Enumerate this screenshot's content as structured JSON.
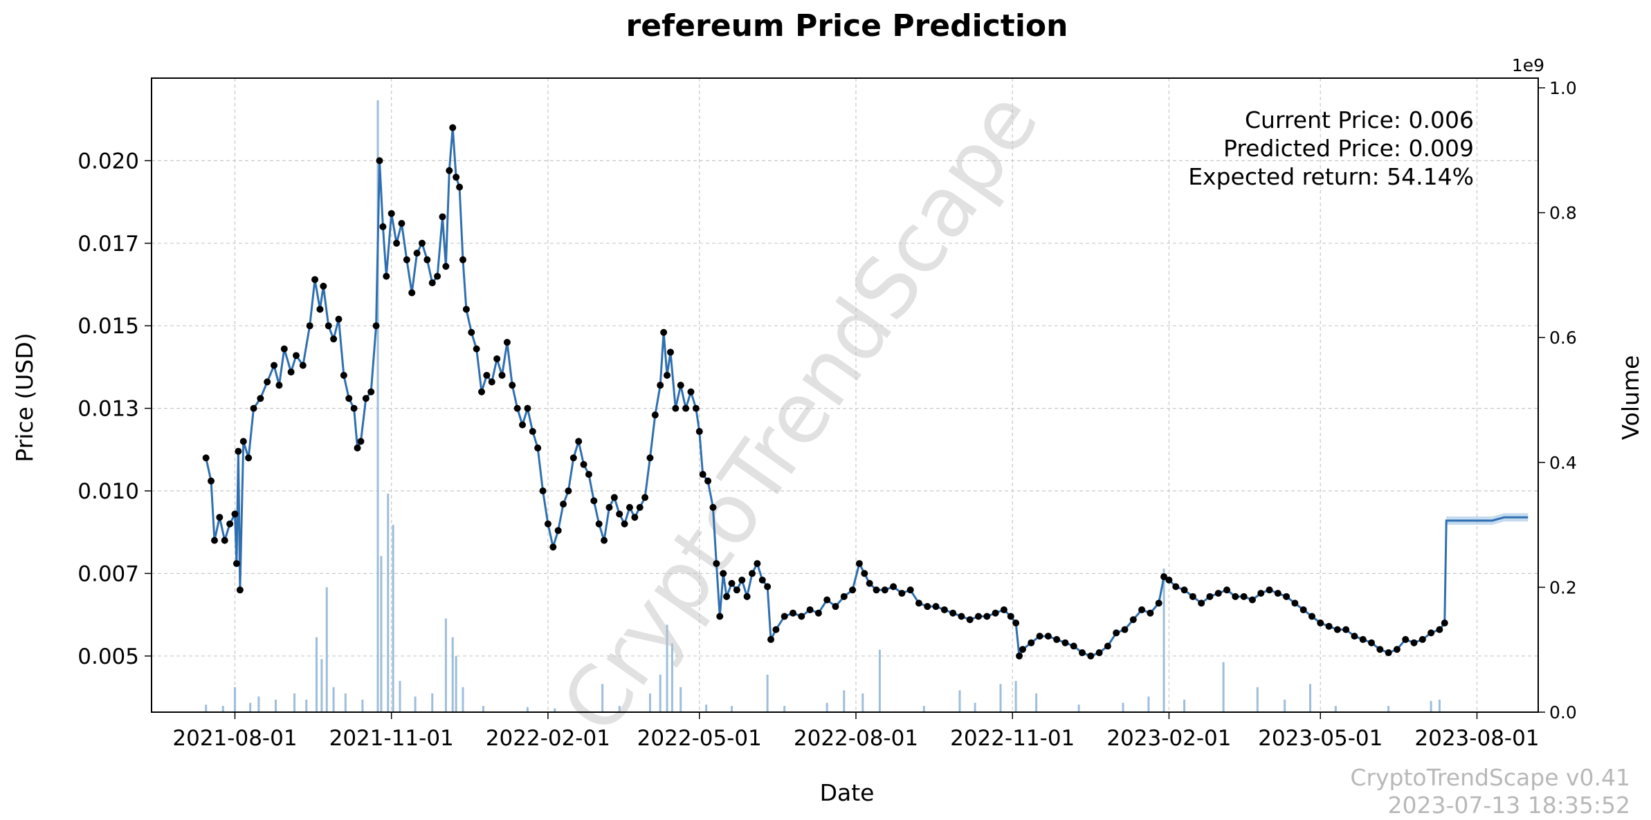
{
  "chart_data": {
    "type": "line",
    "title": "refereum Price Prediction",
    "xlabel": "Date",
    "ylabel": "Price (USD)",
    "y2label": "Volume",
    "y2_offset_label": "1e9",
    "x_range": [
      "2021-06-13",
      "2023-09-06"
    ],
    "ylim": [
      0.0033,
      0.0225
    ],
    "y2lim": [
      0,
      1.0
    ],
    "x_ticks": [
      "2021-08-01",
      "2021-11-01",
      "2022-02-01",
      "2022-05-01",
      "2022-08-01",
      "2022-11-01",
      "2023-02-01",
      "2023-05-01",
      "2023-08-01"
    ],
    "y_ticks": [
      {
        "value": 0.005,
        "label": "0.005"
      },
      {
        "value": 0.0075,
        "label": "0.007"
      },
      {
        "value": 0.01,
        "label": "0.010"
      },
      {
        "value": 0.0125,
        "label": "0.013"
      },
      {
        "value": 0.015,
        "label": "0.015"
      },
      {
        "value": 0.0175,
        "label": "0.017"
      },
      {
        "value": 0.02,
        "label": "0.020"
      }
    ],
    "y2_ticks": [
      {
        "value": 0.0,
        "label": "0.0"
      },
      {
        "value": 0.2,
        "label": "0.2"
      },
      {
        "value": 0.4,
        "label": "0.4"
      },
      {
        "value": 0.6,
        "label": "0.6"
      },
      {
        "value": 0.8,
        "label": "0.8"
      },
      {
        "value": 1.0,
        "label": "1.0"
      }
    ],
    "grid": true,
    "price_series": {
      "color": "#2f6fb0",
      "marker_color": "#000000",
      "points": [
        [
          "2021-07-15",
          0.011
        ],
        [
          "2021-07-18",
          0.0103
        ],
        [
          "2021-07-20",
          0.0085
        ],
        [
          "2021-07-23",
          0.0092
        ],
        [
          "2021-07-26",
          0.0085
        ],
        [
          "2021-07-29",
          0.009
        ],
        [
          "2021-08-01",
          0.0093
        ],
        [
          "2021-08-02",
          0.0078
        ],
        [
          "2021-08-03",
          0.0112
        ],
        [
          "2021-08-04",
          0.007
        ],
        [
          "2021-08-06",
          0.0115
        ],
        [
          "2021-08-09",
          0.011
        ],
        [
          "2021-08-12",
          0.0125
        ],
        [
          "2021-08-16",
          0.0128
        ],
        [
          "2021-08-20",
          0.0133
        ],
        [
          "2021-08-24",
          0.0138
        ],
        [
          "2021-08-27",
          0.0132
        ],
        [
          "2021-08-30",
          0.0143
        ],
        [
          "2021-09-03",
          0.0136
        ],
        [
          "2021-09-06",
          0.0141
        ],
        [
          "2021-09-10",
          0.0138
        ],
        [
          "2021-09-14",
          0.015
        ],
        [
          "2021-09-17",
          0.0164
        ],
        [
          "2021-09-20",
          0.0155
        ],
        [
          "2021-09-22",
          0.0162
        ],
        [
          "2021-09-25",
          0.015
        ],
        [
          "2021-09-28",
          0.0146
        ],
        [
          "2021-10-01",
          0.0152
        ],
        [
          "2021-10-04",
          0.0135
        ],
        [
          "2021-10-07",
          0.0128
        ],
        [
          "2021-10-10",
          0.0125
        ],
        [
          "2021-10-12",
          0.0113
        ],
        [
          "2021-10-14",
          0.0115
        ],
        [
          "2021-10-17",
          0.0128
        ],
        [
          "2021-10-20",
          0.013
        ],
        [
          "2021-10-23",
          0.015
        ],
        [
          "2021-10-25",
          0.02
        ],
        [
          "2021-10-27",
          0.018
        ],
        [
          "2021-10-29",
          0.0165
        ],
        [
          "2021-11-01",
          0.0184
        ],
        [
          "2021-11-04",
          0.0175
        ],
        [
          "2021-11-07",
          0.0181
        ],
        [
          "2021-11-10",
          0.017
        ],
        [
          "2021-11-13",
          0.016
        ],
        [
          "2021-11-16",
          0.0172
        ],
        [
          "2021-11-19",
          0.0175
        ],
        [
          "2021-11-22",
          0.017
        ],
        [
          "2021-11-25",
          0.0163
        ],
        [
          "2021-11-28",
          0.0165
        ],
        [
          "2021-12-01",
          0.0183
        ],
        [
          "2021-12-03",
          0.0168
        ],
        [
          "2021-12-05",
          0.0197
        ],
        [
          "2021-12-07",
          0.021
        ],
        [
          "2021-12-09",
          0.0195
        ],
        [
          "2021-12-11",
          0.0192
        ],
        [
          "2021-12-13",
          0.017
        ],
        [
          "2021-12-15",
          0.0155
        ],
        [
          "2021-12-18",
          0.0148
        ],
        [
          "2021-12-21",
          0.0143
        ],
        [
          "2021-12-24",
          0.013
        ],
        [
          "2021-12-27",
          0.0135
        ],
        [
          "2021-12-30",
          0.0133
        ],
        [
          "2022-01-02",
          0.014
        ],
        [
          "2022-01-05",
          0.0135
        ],
        [
          "2022-01-08",
          0.0145
        ],
        [
          "2022-01-11",
          0.0132
        ],
        [
          "2022-01-14",
          0.0125
        ],
        [
          "2022-01-17",
          0.012
        ],
        [
          "2022-01-20",
          0.0125
        ],
        [
          "2022-01-23",
          0.0118
        ],
        [
          "2022-01-26",
          0.0113
        ],
        [
          "2022-01-29",
          0.01
        ],
        [
          "2022-02-01",
          0.009
        ],
        [
          "2022-02-04",
          0.0083
        ],
        [
          "2022-02-07",
          0.0088
        ],
        [
          "2022-02-10",
          0.0096
        ],
        [
          "2022-02-13",
          0.01
        ],
        [
          "2022-02-16",
          0.011
        ],
        [
          "2022-02-19",
          0.0115
        ],
        [
          "2022-02-22",
          0.0108
        ],
        [
          "2022-02-25",
          0.0105
        ],
        [
          "2022-02-28",
          0.0097
        ],
        [
          "2022-03-03",
          0.009
        ],
        [
          "2022-03-06",
          0.0085
        ],
        [
          "2022-03-09",
          0.0095
        ],
        [
          "2022-03-12",
          0.0098
        ],
        [
          "2022-03-15",
          0.0093
        ],
        [
          "2022-03-18",
          0.009
        ],
        [
          "2022-03-21",
          0.0095
        ],
        [
          "2022-03-24",
          0.0092
        ],
        [
          "2022-03-27",
          0.0095
        ],
        [
          "2022-03-30",
          0.0098
        ],
        [
          "2022-04-02",
          0.011
        ],
        [
          "2022-04-05",
          0.0123
        ],
        [
          "2022-04-08",
          0.0132
        ],
        [
          "2022-04-10",
          0.0148
        ],
        [
          "2022-04-12",
          0.0135
        ],
        [
          "2022-04-14",
          0.0142
        ],
        [
          "2022-04-17",
          0.0125
        ],
        [
          "2022-04-20",
          0.0132
        ],
        [
          "2022-04-23",
          0.0125
        ],
        [
          "2022-04-26",
          0.013
        ],
        [
          "2022-04-29",
          0.0125
        ],
        [
          "2022-05-01",
          0.0118
        ],
        [
          "2022-05-03",
          0.0105
        ],
        [
          "2022-05-06",
          0.0103
        ],
        [
          "2022-05-09",
          0.0095
        ],
        [
          "2022-05-11",
          0.0078
        ],
        [
          "2022-05-13",
          0.0062
        ],
        [
          "2022-05-15",
          0.0075
        ],
        [
          "2022-05-17",
          0.0068
        ],
        [
          "2022-05-20",
          0.0072
        ],
        [
          "2022-05-23",
          0.007
        ],
        [
          "2022-05-26",
          0.0073
        ],
        [
          "2022-05-29",
          0.0068
        ],
        [
          "2022-06-01",
          0.0075
        ],
        [
          "2022-06-04",
          0.0078
        ],
        [
          "2022-06-07",
          0.0073
        ],
        [
          "2022-06-10",
          0.0071
        ],
        [
          "2022-06-12",
          0.0055
        ],
        [
          "2022-06-15",
          0.0058
        ],
        [
          "2022-06-20",
          0.0062
        ],
        [
          "2022-06-25",
          0.0063
        ],
        [
          "2022-06-30",
          0.0062
        ],
        [
          "2022-07-05",
          0.0064
        ],
        [
          "2022-07-10",
          0.0063
        ],
        [
          "2022-07-15",
          0.0067
        ],
        [
          "2022-07-20",
          0.0065
        ],
        [
          "2022-07-25",
          0.0068
        ],
        [
          "2022-07-30",
          0.007
        ],
        [
          "2022-08-03",
          0.0078
        ],
        [
          "2022-08-06",
          0.0075
        ],
        [
          "2022-08-09",
          0.0072
        ],
        [
          "2022-08-13",
          0.007
        ],
        [
          "2022-08-18",
          0.007
        ],
        [
          "2022-08-23",
          0.0071
        ],
        [
          "2022-08-28",
          0.0069
        ],
        [
          "2022-09-02",
          0.007
        ],
        [
          "2022-09-07",
          0.0066
        ],
        [
          "2022-09-12",
          0.0065
        ],
        [
          "2022-09-17",
          0.0065
        ],
        [
          "2022-09-22",
          0.0064
        ],
        [
          "2022-09-27",
          0.0063
        ],
        [
          "2022-10-02",
          0.0062
        ],
        [
          "2022-10-07",
          0.0061
        ],
        [
          "2022-10-12",
          0.0062
        ],
        [
          "2022-10-17",
          0.0062
        ],
        [
          "2022-10-22",
          0.0063
        ],
        [
          "2022-10-27",
          0.0064
        ],
        [
          "2022-10-31",
          0.0062
        ],
        [
          "2022-11-03",
          0.006
        ],
        [
          "2022-11-05",
          0.005
        ],
        [
          "2022-11-07",
          0.0052
        ],
        [
          "2022-11-12",
          0.0054
        ],
        [
          "2022-11-17",
          0.0056
        ],
        [
          "2022-11-22",
          0.0056
        ],
        [
          "2022-11-27",
          0.0055
        ],
        [
          "2022-12-02",
          0.0054
        ],
        [
          "2022-12-07",
          0.0053
        ],
        [
          "2022-12-12",
          0.0051
        ],
        [
          "2022-12-17",
          0.005
        ],
        [
          "2022-12-22",
          0.0051
        ],
        [
          "2022-12-27",
          0.0053
        ],
        [
          "2023-01-01",
          0.0057
        ],
        [
          "2023-01-06",
          0.0058
        ],
        [
          "2023-01-11",
          0.0061
        ],
        [
          "2023-01-16",
          0.0064
        ],
        [
          "2023-01-21",
          0.0063
        ],
        [
          "2023-01-26",
          0.0066
        ],
        [
          "2023-01-29",
          0.0074
        ],
        [
          "2023-02-01",
          0.0073
        ],
        [
          "2023-02-05",
          0.0071
        ],
        [
          "2023-02-10",
          0.007
        ],
        [
          "2023-02-15",
          0.0068
        ],
        [
          "2023-02-20",
          0.0066
        ],
        [
          "2023-02-25",
          0.0068
        ],
        [
          "2023-03-02",
          0.0069
        ],
        [
          "2023-03-07",
          0.007
        ],
        [
          "2023-03-12",
          0.0068
        ],
        [
          "2023-03-17",
          0.0068
        ],
        [
          "2023-03-22",
          0.0067
        ],
        [
          "2023-03-27",
          0.0069
        ],
        [
          "2023-04-01",
          0.007
        ],
        [
          "2023-04-06",
          0.0069
        ],
        [
          "2023-04-11",
          0.0068
        ],
        [
          "2023-04-16",
          0.0066
        ],
        [
          "2023-04-21",
          0.0064
        ],
        [
          "2023-04-26",
          0.0062
        ],
        [
          "2023-05-01",
          0.006
        ],
        [
          "2023-05-06",
          0.0059
        ],
        [
          "2023-05-11",
          0.0058
        ],
        [
          "2023-05-16",
          0.0058
        ],
        [
          "2023-05-21",
          0.0056
        ],
        [
          "2023-05-26",
          0.0055
        ],
        [
          "2023-05-31",
          0.0054
        ],
        [
          "2023-06-05",
          0.0052
        ],
        [
          "2023-06-10",
          0.0051
        ],
        [
          "2023-06-15",
          0.0052
        ],
        [
          "2023-06-20",
          0.0055
        ],
        [
          "2023-06-25",
          0.0054
        ],
        [
          "2023-06-30",
          0.0055
        ],
        [
          "2023-07-05",
          0.0057
        ],
        [
          "2023-07-10",
          0.0058
        ],
        [
          "2023-07-13",
          0.006
        ]
      ]
    },
    "forecast_series": {
      "color": "#2f6fb0",
      "band_color": "#9dc3e6",
      "points": [
        [
          "2023-07-13",
          0.006
        ],
        [
          "2023-07-14",
          0.0091
        ],
        [
          "2023-07-20",
          0.0091
        ],
        [
          "2023-07-27",
          0.0091
        ],
        [
          "2023-08-03",
          0.0091
        ],
        [
          "2023-08-10",
          0.0091
        ],
        [
          "2023-08-17",
          0.0092
        ],
        [
          "2023-08-24",
          0.0092
        ],
        [
          "2023-08-31",
          0.0092
        ]
      ]
    },
    "volume_series": {
      "color": "#9dbedb",
      "unit": "1e9",
      "bars": [
        [
          "2021-07-15",
          0.012
        ],
        [
          "2021-07-25",
          0.01
        ],
        [
          "2021-08-01",
          0.04
        ],
        [
          "2021-08-10",
          0.015
        ],
        [
          "2021-08-15",
          0.025
        ],
        [
          "2021-08-25",
          0.02
        ],
        [
          "2021-09-05",
          0.03
        ],
        [
          "2021-09-12",
          0.02
        ],
        [
          "2021-09-18",
          0.12
        ],
        [
          "2021-09-21",
          0.085
        ],
        [
          "2021-09-24",
          0.2
        ],
        [
          "2021-09-28",
          0.04
        ],
        [
          "2021-10-05",
          0.03
        ],
        [
          "2021-10-15",
          0.02
        ],
        [
          "2021-10-24",
          0.98
        ],
        [
          "2021-10-26",
          0.25
        ],
        [
          "2021-10-30",
          0.35
        ],
        [
          "2021-11-02",
          0.3
        ],
        [
          "2021-11-06",
          0.05
        ],
        [
          "2021-11-15",
          0.025
        ],
        [
          "2021-11-25",
          0.03
        ],
        [
          "2021-12-03",
          0.15
        ],
        [
          "2021-12-07",
          0.12
        ],
        [
          "2021-12-09",
          0.09
        ],
        [
          "2021-12-13",
          0.04
        ],
        [
          "2021-12-25",
          0.01
        ],
        [
          "2022-01-20",
          0.008
        ],
        [
          "2022-02-05",
          0.006
        ],
        [
          "2022-03-05",
          0.045
        ],
        [
          "2022-03-15",
          0.01
        ],
        [
          "2022-04-02",
          0.03
        ],
        [
          "2022-04-08",
          0.06
        ],
        [
          "2022-04-12",
          0.14
        ],
        [
          "2022-04-15",
          0.11
        ],
        [
          "2022-04-20",
          0.04
        ],
        [
          "2022-05-05",
          0.012
        ],
        [
          "2022-05-20",
          0.01
        ],
        [
          "2022-06-10",
          0.06
        ],
        [
          "2022-06-20",
          0.01
        ],
        [
          "2022-07-15",
          0.015
        ],
        [
          "2022-07-25",
          0.035
        ],
        [
          "2022-08-05",
          0.03
        ],
        [
          "2022-08-15",
          0.1
        ],
        [
          "2022-09-10",
          0.01
        ],
        [
          "2022-10-01",
          0.035
        ],
        [
          "2022-10-10",
          0.015
        ],
        [
          "2022-10-25",
          0.045
        ],
        [
          "2022-11-03",
          0.05
        ],
        [
          "2022-11-15",
          0.03
        ],
        [
          "2022-12-10",
          0.012
        ],
        [
          "2023-01-05",
          0.015
        ],
        [
          "2023-01-20",
          0.025
        ],
        [
          "2023-01-29",
          0.23
        ],
        [
          "2023-02-10",
          0.02
        ],
        [
          "2023-03-05",
          0.08
        ],
        [
          "2023-03-25",
          0.04
        ],
        [
          "2023-04-10",
          0.02
        ],
        [
          "2023-04-25",
          0.045
        ],
        [
          "2023-05-10",
          0.01
        ],
        [
          "2023-06-10",
          0.01
        ],
        [
          "2023-07-05",
          0.018
        ],
        [
          "2023-07-10",
          0.02
        ]
      ]
    },
    "annotations": [
      "Current Price: 0.006",
      "Predicted Price: 0.009",
      "Expected return: 54.14%"
    ],
    "watermark": "CryptoTrendScape",
    "footer": {
      "version": "CryptoTrendScape v0.41",
      "timestamp": "2023-07-13 18:35:52"
    }
  }
}
